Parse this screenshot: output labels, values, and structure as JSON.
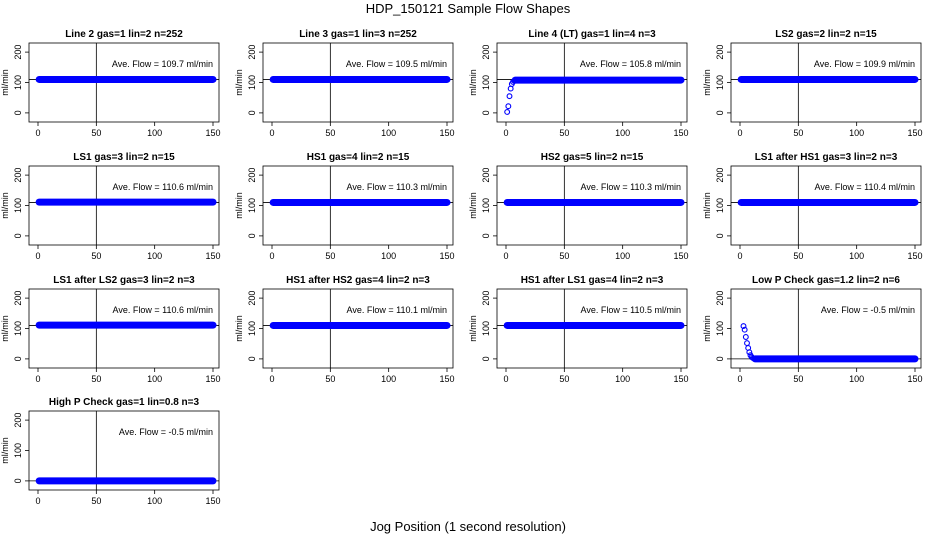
{
  "figure": {
    "title": "HDP_150121  Sample Flow Shapes",
    "xlabel": "Jog Position (1 second resolution)"
  },
  "chart_data": [
    {
      "type": "scatter",
      "title": "Line 2 gas=1 lin=2 n=252",
      "ylabel": "ml/min",
      "annotation": "Ave. Flow =  109.7  ml/min",
      "xlim": [
        0,
        150
      ],
      "ylim": [
        -30,
        230
      ],
      "xticks": [
        "0",
        "50",
        "100",
        "150"
      ],
      "yticks": [
        "0",
        "100",
        "200"
      ],
      "vline": 50,
      "hline": 110,
      "color": "#0000ff",
      "series": [
        {
          "x": [
            1,
            150
          ],
          "y": [
            110,
            110
          ],
          "mode": "continuous"
        }
      ]
    },
    {
      "type": "scatter",
      "title": "Line 3 gas=1 lin=3 n=252",
      "ylabel": "ml/min",
      "annotation": "Ave. Flow =  109.5  ml/min",
      "xlim": [
        0,
        150
      ],
      "ylim": [
        -30,
        230
      ],
      "xticks": [
        "0",
        "50",
        "100",
        "150"
      ],
      "yticks": [
        "0",
        "100",
        "200"
      ],
      "vline": 50,
      "hline": 110,
      "color": "#0000ff",
      "series": [
        {
          "x": [
            1,
            150
          ],
          "y": [
            110,
            110
          ],
          "mode": "continuous"
        }
      ]
    },
    {
      "type": "scatter",
      "title": "Line 4 (LT) gas=1 lin=4 n=3",
      "ylabel": "ml/min",
      "annotation": "Ave. Flow =  105.8  ml/min",
      "xlim": [
        0,
        150
      ],
      "ylim": [
        -30,
        230
      ],
      "xticks": [
        "0",
        "50",
        "100",
        "150"
      ],
      "yticks": [
        "0",
        "100",
        "200"
      ],
      "vline": 50,
      "hline": 110,
      "color": "#0000ff",
      "series": [
        {
          "x": [
            1,
            2,
            3,
            4,
            5,
            6,
            7
          ],
          "y": [
            3,
            22,
            55,
            80,
            95,
            102,
            106
          ],
          "mode": "points"
        },
        {
          "x": [
            8,
            150
          ],
          "y": [
            108,
            108
          ],
          "mode": "continuous"
        }
      ]
    },
    {
      "type": "scatter",
      "title": "LS2 gas=2 lin=2 n=15",
      "ylabel": "ml/min",
      "annotation": "Ave. Flow =  109.9  ml/min",
      "xlim": [
        0,
        150
      ],
      "ylim": [
        -30,
        230
      ],
      "xticks": [
        "0",
        "50",
        "100",
        "150"
      ],
      "yticks": [
        "0",
        "100",
        "200"
      ],
      "vline": 50,
      "hline": 110,
      "color": "#0000ff",
      "series": [
        {
          "x": [
            1,
            150
          ],
          "y": [
            110,
            110
          ],
          "mode": "continuous"
        }
      ]
    },
    {
      "type": "scatter",
      "title": "LS1 gas=3 lin=2 n=15",
      "ylabel": "ml/min",
      "annotation": "Ave. Flow =  110.6  ml/min",
      "xlim": [
        0,
        150
      ],
      "ylim": [
        -30,
        230
      ],
      "xticks": [
        "0",
        "50",
        "100",
        "150"
      ],
      "yticks": [
        "0",
        "100",
        "200"
      ],
      "vline": 50,
      "hline": 110,
      "color": "#0000ff",
      "series": [
        {
          "x": [
            1,
            150
          ],
          "y": [
            111,
            111
          ],
          "mode": "continuous"
        }
      ]
    },
    {
      "type": "scatter",
      "title": "HS1 gas=4 lin=2 n=15",
      "ylabel": "ml/min",
      "annotation": "Ave. Flow =  110.3  ml/min",
      "xlim": [
        0,
        150
      ],
      "ylim": [
        -30,
        230
      ],
      "xticks": [
        "0",
        "50",
        "100",
        "150"
      ],
      "yticks": [
        "0",
        "100",
        "200"
      ],
      "vline": 50,
      "hline": 110,
      "color": "#0000ff",
      "series": [
        {
          "x": [
            1,
            150
          ],
          "y": [
            110,
            110
          ],
          "mode": "continuous"
        }
      ]
    },
    {
      "type": "scatter",
      "title": "HS2 gas=5 lin=2 n=15",
      "ylabel": "ml/min",
      "annotation": "Ave. Flow =  110.3  ml/min",
      "xlim": [
        0,
        150
      ],
      "ylim": [
        -30,
        230
      ],
      "xticks": [
        "0",
        "50",
        "100",
        "150"
      ],
      "yticks": [
        "0",
        "100",
        "200"
      ],
      "vline": 50,
      "hline": 110,
      "color": "#0000ff",
      "series": [
        {
          "x": [
            1,
            150
          ],
          "y": [
            110,
            110
          ],
          "mode": "continuous"
        }
      ]
    },
    {
      "type": "scatter",
      "title": "LS1 after HS1 gas=3 lin=2 n=3",
      "ylabel": "ml/min",
      "annotation": "Ave. Flow =  110.4  ml/min",
      "xlim": [
        0,
        150
      ],
      "ylim": [
        -30,
        230
      ],
      "xticks": [
        "0",
        "50",
        "100",
        "150"
      ],
      "yticks": [
        "0",
        "100",
        "200"
      ],
      "vline": 50,
      "hline": 110,
      "color": "#0000ff",
      "series": [
        {
          "x": [
            1,
            150
          ],
          "y": [
            110,
            110
          ],
          "mode": "continuous"
        }
      ]
    },
    {
      "type": "scatter",
      "title": "LS1 after LS2 gas=3 lin=2 n=3",
      "ylabel": "ml/min",
      "annotation": "Ave. Flow =  110.6  ml/min",
      "xlim": [
        0,
        150
      ],
      "ylim": [
        -30,
        230
      ],
      "xticks": [
        "0",
        "50",
        "100",
        "150"
      ],
      "yticks": [
        "0",
        "100",
        "200"
      ],
      "vline": 50,
      "hline": 110,
      "color": "#0000ff",
      "series": [
        {
          "x": [
            1,
            150
          ],
          "y": [
            111,
            111
          ],
          "mode": "continuous"
        }
      ]
    },
    {
      "type": "scatter",
      "title": "HS1 after HS2 gas=4 lin=2 n=3",
      "ylabel": "ml/min",
      "annotation": "Ave. Flow =  110.1  ml/min",
      "xlim": [
        0,
        150
      ],
      "ylim": [
        -30,
        230
      ],
      "xticks": [
        "0",
        "50",
        "100",
        "150"
      ],
      "yticks": [
        "0",
        "100",
        "200"
      ],
      "vline": 50,
      "hline": 110,
      "color": "#0000ff",
      "series": [
        {
          "x": [
            1,
            150
          ],
          "y": [
            110,
            110
          ],
          "mode": "continuous"
        }
      ]
    },
    {
      "type": "scatter",
      "title": "HS1 after LS1 gas=4 lin=2 n=3",
      "ylabel": "ml/min",
      "annotation": "Ave. Flow =  110.5  ml/min",
      "xlim": [
        0,
        150
      ],
      "ylim": [
        -30,
        230
      ],
      "xticks": [
        "0",
        "50",
        "100",
        "150"
      ],
      "yticks": [
        "0",
        "100",
        "200"
      ],
      "vline": 50,
      "hline": 110,
      "color": "#0000ff",
      "series": [
        {
          "x": [
            1,
            150
          ],
          "y": [
            110,
            110
          ],
          "mode": "continuous"
        }
      ]
    },
    {
      "type": "scatter",
      "title": "Low P Check gas=1.2 lin=2 n=6",
      "ylabel": "ml/min",
      "annotation": "Ave. Flow =  -0.5  ml/min",
      "xlim": [
        0,
        150
      ],
      "ylim": [
        -30,
        230
      ],
      "xticks": [
        "0",
        "50",
        "100",
        "150"
      ],
      "yticks": [
        "0",
        "100",
        "200"
      ],
      "vline": 50,
      "hline": 0,
      "color": "#0000ff",
      "series": [
        {
          "x": [
            3,
            4,
            5,
            6,
            7,
            8,
            9,
            10,
            11,
            12
          ],
          "y": [
            108,
            96,
            72,
            52,
            36,
            22,
            12,
            6,
            3,
            1
          ],
          "mode": "points"
        },
        {
          "x": [
            13,
            150
          ],
          "y": [
            0,
            0
          ],
          "mode": "continuous"
        }
      ]
    },
    {
      "type": "scatter",
      "title": "High P Check gas=1 lin=0.8 n=3",
      "ylabel": "ml/min",
      "annotation": "Ave. Flow =  -0.5  ml/min",
      "xlim": [
        0,
        150
      ],
      "ylim": [
        -30,
        230
      ],
      "xticks": [
        "0",
        "50",
        "100",
        "150"
      ],
      "yticks": [
        "0",
        "100",
        "200"
      ],
      "vline": 50,
      "hline": 0,
      "color": "#0000ff",
      "series": [
        {
          "x": [
            1,
            150
          ],
          "y": [
            0,
            0
          ],
          "mode": "continuous"
        }
      ]
    }
  ]
}
